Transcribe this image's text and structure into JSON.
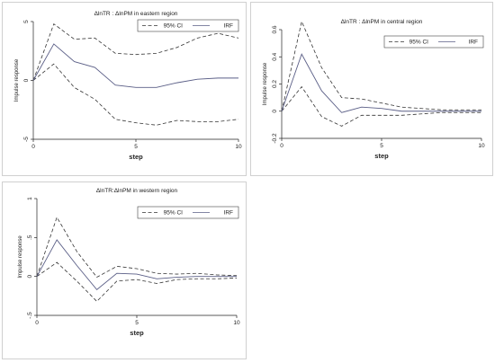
{
  "chart_data": [
    {
      "type": "line",
      "title": "ΔlnTR : ΔlnPM in eastern region",
      "xlabel": "step",
      "ylabel": "Impulse response",
      "xlim": [
        0,
        10
      ],
      "ylim": [
        -5,
        5
      ],
      "xticks": [
        0,
        5,
        10
      ],
      "yticks": [
        -5,
        0,
        5
      ],
      "grid": false,
      "legend_position": "top-right",
      "x": [
        0,
        1,
        2,
        3,
        4,
        5,
        6,
        7,
        8,
        9,
        10
      ],
      "series": [
        {
          "name": "95% CI",
          "style": "dashed",
          "values": [
            0,
            4.8,
            3.5,
            3.6,
            2.3,
            2.2,
            2.3,
            2.8,
            3.6,
            4.0,
            3.6
          ]
        },
        {
          "name": "95% CI",
          "style": "dashed",
          "values": [
            0,
            1.4,
            -0.6,
            -1.6,
            -3.3,
            -3.6,
            -3.8,
            -3.4,
            -3.5,
            -3.5,
            -3.3
          ]
        },
        {
          "name": "IRF",
          "style": "solid",
          "values": [
            0,
            3.1,
            1.6,
            1.1,
            -0.4,
            -0.6,
            -0.6,
            -0.2,
            0.1,
            0.2,
            0.2
          ]
        }
      ],
      "legend": [
        {
          "label": "95% CI",
          "style": "dashed"
        },
        {
          "label": "IRF",
          "style": "solid"
        }
      ]
    },
    {
      "type": "line",
      "title": "ΔlnTR : ΔlnPM in central region",
      "xlabel": "step",
      "ylabel": "Impulse response",
      "xlim": [
        0,
        10
      ],
      "ylim": [
        -0.2,
        0.6
      ],
      "xticks": [
        0,
        5,
        10
      ],
      "yticks": [
        -0.2,
        0,
        0.2,
        0.4,
        0.6
      ],
      "ytick_labels": [
        "-0.2",
        "0",
        "0.2",
        "0.4",
        "0.6"
      ],
      "grid": false,
      "legend_position": "top-right",
      "x": [
        0,
        1,
        2,
        3,
        4,
        5,
        6,
        7,
        8,
        9,
        10
      ],
      "series": [
        {
          "name": "95% CI",
          "style": "dashed",
          "values": [
            0,
            0.66,
            0.32,
            0.1,
            0.09,
            0.06,
            0.03,
            0.02,
            0.01,
            0.01,
            0.01
          ]
        },
        {
          "name": "95% CI",
          "style": "dashed",
          "values": [
            0,
            0.18,
            -0.04,
            -0.11,
            -0.03,
            -0.03,
            -0.03,
            -0.02,
            -0.01,
            -0.01,
            -0.01
          ]
        },
        {
          "name": "IRF",
          "style": "solid",
          "values": [
            0,
            0.42,
            0.15,
            -0.01,
            0.03,
            0.02,
            0.0,
            0.0,
            0.0,
            0.0,
            0.0
          ]
        }
      ],
      "legend": [
        {
          "label": "95% CI",
          "style": "dashed"
        },
        {
          "label": "IRF",
          "style": "solid"
        }
      ]
    },
    {
      "type": "line",
      "title": "ΔlnTR:ΔlnPM in western region",
      "xlabel": "step",
      "ylabel": "Impulse response",
      "xlim": [
        0,
        10
      ],
      "ylim": [
        -0.5,
        1
      ],
      "xticks": [
        0,
        5,
        10
      ],
      "yticks": [
        -0.5,
        0,
        0.5,
        1
      ],
      "ytick_labels": [
        "-.5",
        "0",
        ".5",
        "1"
      ],
      "grid": false,
      "legend_position": "top-right",
      "x": [
        0,
        1,
        2,
        3,
        4,
        5,
        6,
        7,
        8,
        9,
        10
      ],
      "series": [
        {
          "name": "95% CI",
          "style": "dashed",
          "values": [
            0,
            0.76,
            0.32,
            -0.01,
            0.13,
            0.1,
            0.04,
            0.03,
            0.04,
            0.02,
            0.01
          ]
        },
        {
          "name": "95% CI",
          "style": "dashed",
          "values": [
            0,
            0.18,
            -0.06,
            -0.32,
            -0.06,
            -0.04,
            -0.09,
            -0.04,
            -0.03,
            -0.03,
            -0.02
          ]
        },
        {
          "name": "IRF",
          "style": "solid",
          "values": [
            0,
            0.47,
            0.14,
            -0.17,
            0.04,
            0.03,
            -0.03,
            -0.01,
            0.0,
            0.0,
            0.0
          ]
        }
      ],
      "legend": [
        {
          "label": "95% CI",
          "style": "dashed"
        },
        {
          "label": "IRF",
          "style": "solid"
        }
      ]
    }
  ]
}
